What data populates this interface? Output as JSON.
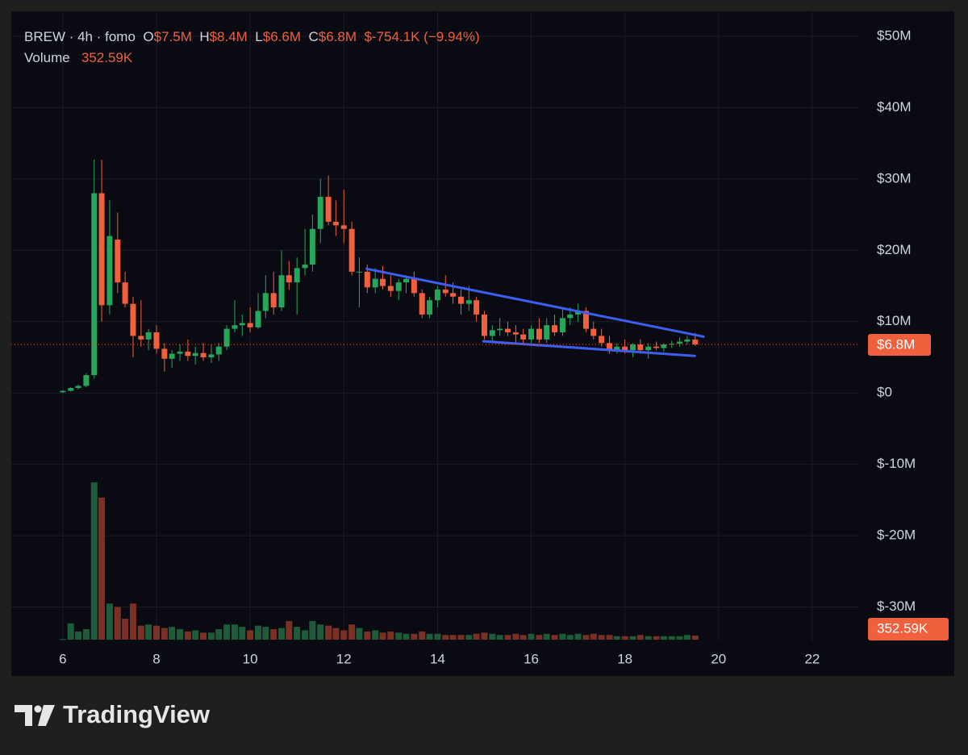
{
  "chart_data": {
    "type": "candlestick",
    "legend": {
      "symbol": "BREW · 4h · fomo",
      "o_label": "O",
      "o_value": "$7.5M",
      "h_label": "H",
      "h_value": "$8.4M",
      "l_label": "L",
      "l_value": "$6.6M",
      "c_label": "C",
      "c_value": "$6.8M",
      "change": "$-754.1K (−9.94%)",
      "volume_label": "Volume",
      "volume_value": "352.59K"
    },
    "x": [
      6,
      6.17,
      6.33,
      6.5,
      6.67,
      6.83,
      7,
      7.17,
      7.33,
      7.5,
      7.67,
      7.83,
      8,
      8.17,
      8.33,
      8.5,
      8.67,
      8.83,
      9,
      9.17,
      9.33,
      9.5,
      9.67,
      9.83,
      10,
      10.17,
      10.33,
      10.5,
      10.67,
      10.83,
      11,
      11.17,
      11.33,
      11.5,
      11.67,
      11.83,
      12,
      12.17,
      12.33,
      12.5,
      12.67,
      12.83,
      13,
      13.17,
      13.33,
      13.5,
      13.67,
      13.83,
      14,
      14.17,
      14.33,
      14.5,
      14.67,
      14.83,
      15,
      15.17,
      15.33,
      15.5,
      15.67,
      15.83,
      16,
      16.17,
      16.33,
      16.5,
      16.67,
      16.83,
      17,
      17.17,
      17.33,
      17.5,
      17.67,
      17.83,
      18,
      18.17,
      18.33,
      18.5,
      18.67,
      18.83,
      19,
      19.17,
      19.33,
      19.5
    ],
    "open": [
      0.1,
      0.3,
      0.7,
      1.0,
      2.5,
      28.0,
      12.3,
      21.5,
      15.5,
      12.5,
      8.0,
      7.5,
      8.5,
      6.2,
      4.8,
      5.5,
      5.8,
      5.2,
      5.6,
      5.0,
      5.4,
      6.5,
      9.0,
      9.5,
      9.8,
      9.2,
      11.5,
      14.0,
      12.0,
      16.5,
      15.5,
      17.5,
      18.0,
      23.0,
      27.5,
      24.0,
      23.5,
      23.0,
      17.0,
      17.0,
      14.8,
      16.0,
      15.0,
      14.3,
      15.5,
      16.0,
      14.0,
      11.0,
      13.0,
      14.5,
      14.0,
      13.5,
      12.5,
      13.0,
      11.0,
      8.0,
      8.8,
      9.0,
      8.5,
      8.2,
      7.5,
      9.0,
      7.5,
      9.5,
      8.5,
      10.5,
      11.0,
      11.5,
      9.0,
      8.0,
      7.0,
      6.0,
      6.5,
      6.0,
      6.8,
      6.0,
      6.5,
      6.3,
      6.8,
      6.9,
      7.2,
      7.5
    ],
    "high": [
      0.4,
      0.8,
      1.2,
      2.8,
      32.7,
      32.7,
      27.0,
      25.3,
      17.0,
      13.5,
      13.0,
      9.0,
      9.5,
      7.0,
      6.0,
      6.8,
      7.5,
      6.5,
      7.0,
      6.8,
      7.0,
      9.5,
      13.0,
      11.0,
      12.0,
      14.0,
      16.5,
      17.0,
      20.0,
      18.5,
      19.0,
      23.0,
      25.0,
      30.0,
      30.5,
      27.0,
      28.5,
      24.0,
      19.0,
      18.0,
      17.5,
      17.8,
      16.5,
      16.0,
      16.5,
      17.0,
      14.5,
      13.5,
      15.0,
      16.5,
      15.5,
      14.5,
      15.0,
      13.5,
      11.5,
      9.5,
      10.5,
      10.0,
      9.5,
      9.0,
      9.5,
      10.5,
      10.5,
      11.0,
      12.0,
      12.0,
      12.5,
      12.0,
      10.0,
      9.0,
      8.0,
      7.0,
      7.5,
      7.0,
      7.5,
      7.0,
      7.2,
      7.0,
      7.3,
      7.8,
      8.0,
      8.4
    ],
    "low": [
      0.0,
      0.2,
      0.5,
      0.8,
      2.0,
      10.0,
      11.0,
      14.0,
      12.0,
      5.0,
      6.5,
      6.0,
      5.5,
      3.0,
      3.5,
      4.5,
      4.5,
      4.0,
      4.5,
      4.2,
      4.5,
      6.0,
      8.5,
      8.0,
      8.5,
      9.0,
      10.5,
      11.0,
      11.5,
      14.5,
      11.0,
      16.5,
      17.0,
      21.0,
      23.5,
      22.0,
      21.0,
      16.5,
      12.0,
      14.0,
      14.0,
      14.5,
      13.5,
      13.0,
      14.0,
      13.5,
      10.5,
      10.5,
      12.0,
      13.5,
      12.5,
      11.0,
      11.5,
      10.0,
      7.5,
      7.0,
      8.0,
      8.0,
      7.0,
      7.0,
      7.0,
      7.0,
      7.0,
      8.0,
      8.0,
      9.5,
      10.0,
      8.5,
      7.5,
      6.5,
      5.5,
      5.5,
      5.5,
      5.0,
      5.5,
      4.8,
      6.0,
      5.8,
      6.3,
      6.5,
      6.8,
      6.6
    ],
    "close": [
      0.3,
      0.7,
      1.0,
      2.5,
      28.0,
      12.3,
      22.0,
      15.5,
      12.5,
      8.0,
      7.5,
      8.5,
      6.2,
      4.8,
      5.5,
      5.8,
      5.2,
      5.6,
      5.0,
      5.4,
      6.5,
      9.0,
      9.5,
      9.8,
      9.2,
      11.5,
      14.0,
      12.0,
      16.5,
      15.5,
      17.5,
      18.0,
      23.0,
      27.5,
      24.0,
      23.5,
      23.0,
      17.0,
      17.0,
      14.8,
      16.0,
      15.0,
      14.3,
      15.5,
      16.0,
      14.0,
      11.0,
      13.0,
      14.5,
      14.0,
      13.5,
      12.5,
      13.0,
      11.0,
      8.0,
      8.8,
      9.0,
      8.5,
      8.2,
      7.5,
      9.0,
      7.5,
      9.5,
      8.5,
      10.5,
      11.0,
      11.5,
      9.0,
      8.0,
      7.0,
      6.0,
      6.5,
      6.0,
      6.8,
      6.0,
      6.5,
      6.3,
      6.8,
      6.9,
      7.2,
      7.5,
      6.8
    ],
    "volume": {
      "name": "Volume",
      "values": [
        50,
        1400,
        700,
        900,
        13500,
        12200,
        3100,
        2800,
        1800,
        3100,
        1200,
        1300,
        1200,
        1000,
        1100,
        900,
        700,
        800,
        600,
        600,
        900,
        1300,
        1300,
        1100,
        800,
        1200,
        1100,
        900,
        1000,
        1600,
        1100,
        800,
        1600,
        1300,
        1200,
        1000,
        800,
        1300,
        1000,
        700,
        800,
        600,
        700,
        600,
        500,
        500,
        700,
        500,
        500,
        400,
        400,
        400,
        400,
        500,
        600,
        500,
        400,
        400,
        500,
        400,
        500,
        400,
        500,
        400,
        500,
        400,
        500,
        400,
        500,
        400,
        400,
        300,
        300,
        300,
        400,
        300,
        300,
        300,
        300,
        300,
        400,
        352.59
      ]
    },
    "last_price": {
      "value": 6.8,
      "label": "$6.8M"
    },
    "last_volume": {
      "value": 352.59,
      "label": "352.59K"
    },
    "trendlines": [
      {
        "x": [
          12.49,
          19.68
        ],
        "y": [
          17.4,
          7.9
        ]
      },
      {
        "x": [
          14.98,
          19.49
        ],
        "y": [
          7.24,
          5.2
        ]
      }
    ],
    "trendline_color": "#3d5ef2",
    "up_color": "#26a65b",
    "down_color": "#f0603d",
    "volume_up_color": "#1e5b3b",
    "volume_down_color": "#7a3124",
    "xlim": [
      4.9,
      23.0
    ],
    "xticks": [
      6,
      8,
      10,
      12,
      14,
      16,
      18,
      20,
      22
    ],
    "ylim": [
      -34.8,
      53.5
    ],
    "yticks": [
      {
        "value": 50,
        "label": "$50M"
      },
      {
        "value": 40,
        "label": "$40M"
      },
      {
        "value": 30,
        "label": "$30M"
      },
      {
        "value": 20,
        "label": "$20M"
      },
      {
        "value": 10,
        "label": "$10M"
      },
      {
        "value": 0,
        "label": "$0"
      },
      {
        "value": -10,
        "label": "$-10M"
      },
      {
        "value": -20,
        "label": "$-20M"
      },
      {
        "value": -30,
        "label": "$-30M"
      }
    ],
    "grid": true
  },
  "footer": {
    "brand": "TradingView"
  }
}
